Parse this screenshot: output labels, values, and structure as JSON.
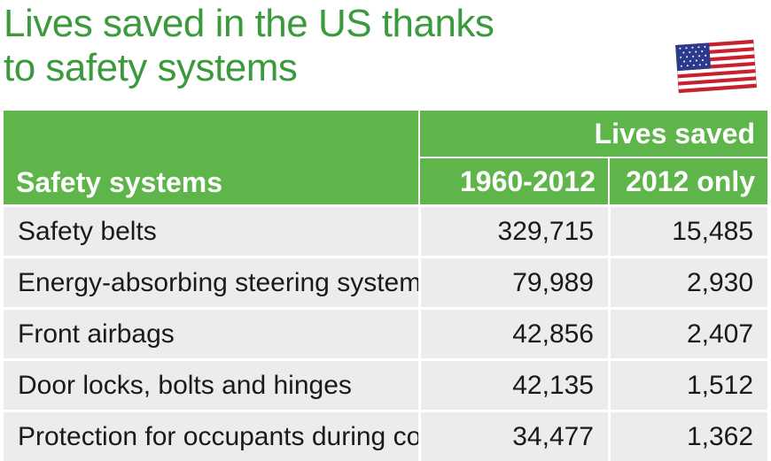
{
  "title_line1": "Lives saved in the US thanks",
  "title_line2": "to safety systems",
  "flag_icon": "us-flag-icon",
  "colors": {
    "title": "#3a9a3c",
    "header_bg": "#5eb64a",
    "row_bg": "#ececec"
  },
  "chart_data": {
    "type": "table",
    "group_header": "Lives saved",
    "columns": [
      "Safety systems",
      "1960-2012",
      "2012 only"
    ],
    "rows": [
      {
        "system": "Safety belts",
        "v1960_2012": "329,715",
        "v2012": "15,485"
      },
      {
        "system": "Energy-absorbing steering systems",
        "v1960_2012": "79,989",
        "v2012": "2,930"
      },
      {
        "system": "Front airbags",
        "v1960_2012": "42,856",
        "v2012": "2,407"
      },
      {
        "system": "Door locks, bolts and hinges",
        "v1960_2012": "42,135",
        "v2012": "1,512"
      },
      {
        "system": "Protection for occupants during collision",
        "v1960_2012": "34,477",
        "v2012": "1,362"
      }
    ]
  }
}
